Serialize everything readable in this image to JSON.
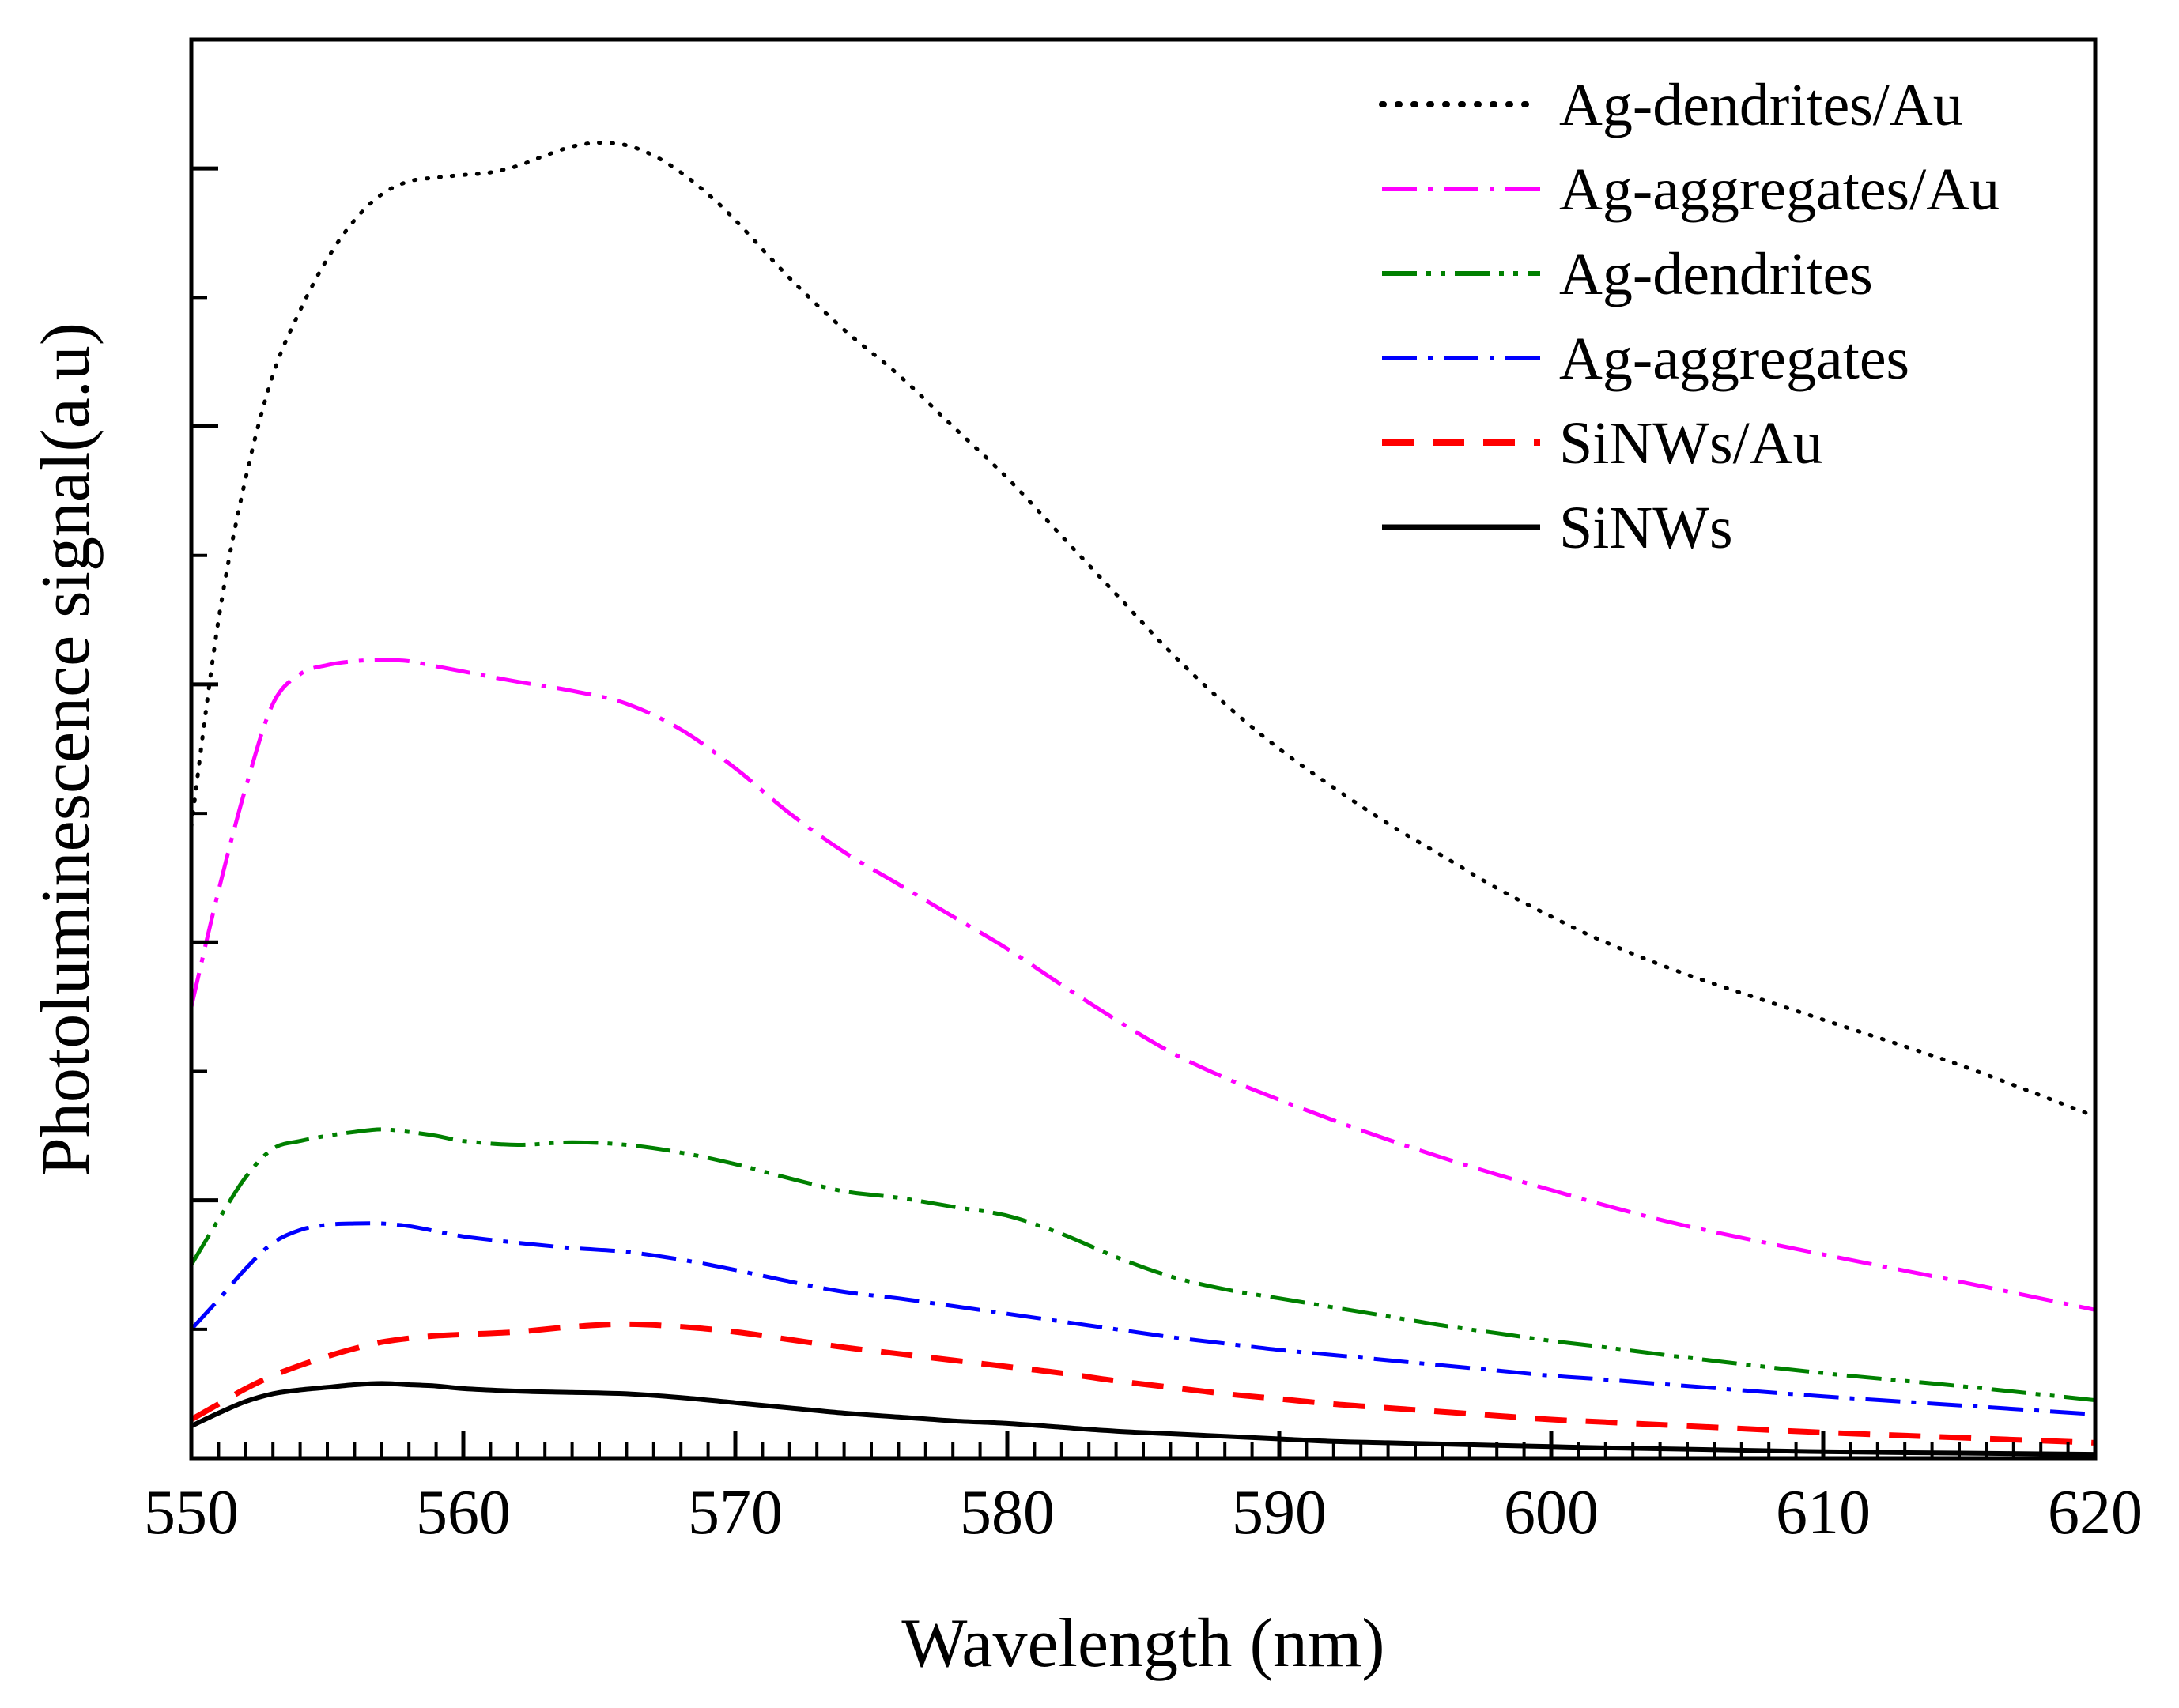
{
  "chart_data": {
    "type": "line",
    "title": "",
    "xlabel": "Wavelength (nm)",
    "ylabel": "Photoluminescence signal(a.u)",
    "xlim": [
      550,
      620
    ],
    "ylim": [
      0,
      11
    ],
    "x_ticks": [
      550,
      560,
      570,
      580,
      590,
      600,
      610,
      620
    ],
    "x_tick_labels": [
      "550",
      "560",
      "570",
      "580",
      "590",
      "600",
      "610",
      "620"
    ],
    "y_tick_labels_shown": false,
    "grid": false,
    "legend_position": "top-right",
    "series": [
      {
        "name": "Ag-dendrites/Au",
        "color": "#000000",
        "style": "dotted",
        "points": [
          [
            550,
            4.9
          ],
          [
            551,
            6.5
          ],
          [
            552,
            7.6
          ],
          [
            553,
            8.4
          ],
          [
            554,
            8.9
          ],
          [
            555,
            9.3
          ],
          [
            556,
            9.6
          ],
          [
            557,
            9.8
          ],
          [
            558,
            9.9
          ],
          [
            559,
            9.93
          ],
          [
            560,
            9.95
          ],
          [
            561,
            9.97
          ],
          [
            562,
            10.02
          ],
          [
            563,
            10.1
          ],
          [
            564,
            10.17
          ],
          [
            565,
            10.2
          ],
          [
            566,
            10.18
          ],
          [
            567,
            10.1
          ],
          [
            568,
            9.97
          ],
          [
            569,
            9.8
          ],
          [
            570,
            9.6
          ],
          [
            572,
            9.15
          ],
          [
            574,
            8.75
          ],
          [
            576,
            8.4
          ],
          [
            578,
            8.0
          ],
          [
            580,
            7.6
          ],
          [
            582,
            7.15
          ],
          [
            584,
            6.7
          ],
          [
            586,
            6.25
          ],
          [
            588,
            5.85
          ],
          [
            590,
            5.5
          ],
          [
            592,
            5.2
          ],
          [
            594,
            4.92
          ],
          [
            596,
            4.67
          ],
          [
            598,
            4.42
          ],
          [
            600,
            4.2
          ],
          [
            602,
            4.0
          ],
          [
            605,
            3.75
          ],
          [
            610,
            3.4
          ],
          [
            615,
            3.05
          ],
          [
            620,
            2.65
          ]
        ]
      },
      {
        "name": "Ag-aggregates/Au",
        "color": "#ff00ff",
        "style": "dash-dot",
        "points": [
          [
            550,
            3.5
          ],
          [
            551,
            4.4
          ],
          [
            552,
            5.2
          ],
          [
            553,
            5.85
          ],
          [
            554,
            6.08
          ],
          [
            555,
            6.15
          ],
          [
            556,
            6.18
          ],
          [
            557,
            6.19
          ],
          [
            558,
            6.18
          ],
          [
            559,
            6.14
          ],
          [
            560,
            6.1
          ],
          [
            562,
            6.02
          ],
          [
            564,
            5.95
          ],
          [
            566,
            5.85
          ],
          [
            568,
            5.65
          ],
          [
            570,
            5.35
          ],
          [
            572,
            5.0
          ],
          [
            574,
            4.7
          ],
          [
            576,
            4.45
          ],
          [
            578,
            4.2
          ],
          [
            580,
            3.95
          ],
          [
            582,
            3.67
          ],
          [
            584,
            3.4
          ],
          [
            586,
            3.15
          ],
          [
            588,
            2.95
          ],
          [
            590,
            2.78
          ],
          [
            592,
            2.62
          ],
          [
            594,
            2.47
          ],
          [
            596,
            2.33
          ],
          [
            598,
            2.2
          ],
          [
            600,
            2.08
          ],
          [
            602,
            1.96
          ],
          [
            605,
            1.8
          ],
          [
            610,
            1.58
          ],
          [
            615,
            1.37
          ],
          [
            620,
            1.15
          ]
        ]
      },
      {
        "name": "Ag-dendrites",
        "color": "#008000",
        "style": "dash-dot-dot",
        "points": [
          [
            550,
            1.5
          ],
          [
            551,
            1.85
          ],
          [
            552,
            2.18
          ],
          [
            553,
            2.4
          ],
          [
            554,
            2.46
          ],
          [
            555,
            2.5
          ],
          [
            556,
            2.53
          ],
          [
            557,
            2.55
          ],
          [
            558,
            2.53
          ],
          [
            559,
            2.5
          ],
          [
            560,
            2.46
          ],
          [
            562,
            2.43
          ],
          [
            564,
            2.45
          ],
          [
            566,
            2.43
          ],
          [
            568,
            2.37
          ],
          [
            570,
            2.28
          ],
          [
            572,
            2.17
          ],
          [
            574,
            2.07
          ],
          [
            576,
            2.02
          ],
          [
            578,
            1.95
          ],
          [
            580,
            1.88
          ],
          [
            582,
            1.74
          ],
          [
            584,
            1.56
          ],
          [
            586,
            1.41
          ],
          [
            588,
            1.31
          ],
          [
            590,
            1.24
          ],
          [
            592,
            1.17
          ],
          [
            594,
            1.1
          ],
          [
            596,
            1.03
          ],
          [
            598,
            0.97
          ],
          [
            600,
            0.91
          ],
          [
            602,
            0.86
          ],
          [
            605,
            0.78
          ],
          [
            610,
            0.66
          ],
          [
            615,
            0.56
          ],
          [
            620,
            0.45
          ]
        ]
      },
      {
        "name": "Ag-aggregates",
        "color": "#0000ff",
        "style": "dash-dot",
        "points": [
          [
            550,
            1.0
          ],
          [
            551,
            1.23
          ],
          [
            552,
            1.47
          ],
          [
            553,
            1.67
          ],
          [
            554,
            1.77
          ],
          [
            555,
            1.81
          ],
          [
            556,
            1.82
          ],
          [
            557,
            1.82
          ],
          [
            558,
            1.8
          ],
          [
            559,
            1.76
          ],
          [
            560,
            1.72
          ],
          [
            562,
            1.67
          ],
          [
            564,
            1.63
          ],
          [
            566,
            1.6
          ],
          [
            568,
            1.54
          ],
          [
            570,
            1.46
          ],
          [
            572,
            1.37
          ],
          [
            574,
            1.29
          ],
          [
            576,
            1.24
          ],
          [
            578,
            1.18
          ],
          [
            580,
            1.12
          ],
          [
            582,
            1.06
          ],
          [
            584,
            1.0
          ],
          [
            586,
            0.94
          ],
          [
            588,
            0.89
          ],
          [
            590,
            0.84
          ],
          [
            592,
            0.8
          ],
          [
            594,
            0.76
          ],
          [
            596,
            0.72
          ],
          [
            598,
            0.68
          ],
          [
            600,
            0.64
          ],
          [
            602,
            0.61
          ],
          [
            605,
            0.56
          ],
          [
            610,
            0.48
          ],
          [
            615,
            0.41
          ],
          [
            620,
            0.34
          ]
        ]
      },
      {
        "name": "SiNWs/Au",
        "color": "#ff0000",
        "style": "dashed",
        "points": [
          [
            550,
            0.3
          ],
          [
            551,
            0.42
          ],
          [
            552,
            0.54
          ],
          [
            553,
            0.64
          ],
          [
            554,
            0.72
          ],
          [
            555,
            0.79
          ],
          [
            556,
            0.85
          ],
          [
            557,
            0.9
          ],
          [
            558,
            0.93
          ],
          [
            559,
            0.95
          ],
          [
            560,
            0.96
          ],
          [
            562,
            0.98
          ],
          [
            564,
            1.02
          ],
          [
            566,
            1.04
          ],
          [
            568,
            1.02
          ],
          [
            570,
            0.98
          ],
          [
            572,
            0.92
          ],
          [
            574,
            0.86
          ],
          [
            576,
            0.81
          ],
          [
            578,
            0.76
          ],
          [
            580,
            0.71
          ],
          [
            582,
            0.66
          ],
          [
            584,
            0.6
          ],
          [
            586,
            0.55
          ],
          [
            588,
            0.5
          ],
          [
            590,
            0.46
          ],
          [
            592,
            0.42
          ],
          [
            594,
            0.39
          ],
          [
            596,
            0.36
          ],
          [
            598,
            0.33
          ],
          [
            600,
            0.3
          ],
          [
            602,
            0.28
          ],
          [
            605,
            0.25
          ],
          [
            610,
            0.2
          ],
          [
            615,
            0.16
          ],
          [
            620,
            0.12
          ]
        ]
      },
      {
        "name": "SiNWs",
        "color": "#000000",
        "style": "solid",
        "points": [
          [
            550,
            0.25
          ],
          [
            551,
            0.35
          ],
          [
            552,
            0.44
          ],
          [
            553,
            0.5
          ],
          [
            554,
            0.53
          ],
          [
            555,
            0.55
          ],
          [
            556,
            0.57
          ],
          [
            557,
            0.58
          ],
          [
            558,
            0.57
          ],
          [
            559,
            0.56
          ],
          [
            560,
            0.54
          ],
          [
            562,
            0.52
          ],
          [
            564,
            0.51
          ],
          [
            566,
            0.5
          ],
          [
            568,
            0.47
          ],
          [
            570,
            0.43
          ],
          [
            572,
            0.39
          ],
          [
            574,
            0.35
          ],
          [
            576,
            0.32
          ],
          [
            578,
            0.29
          ],
          [
            580,
            0.27
          ],
          [
            582,
            0.24
          ],
          [
            584,
            0.21
          ],
          [
            586,
            0.19
          ],
          [
            588,
            0.17
          ],
          [
            590,
            0.15
          ],
          [
            592,
            0.13
          ],
          [
            594,
            0.12
          ],
          [
            596,
            0.11
          ],
          [
            598,
            0.1
          ],
          [
            600,
            0.09
          ],
          [
            602,
            0.08
          ],
          [
            605,
            0.07
          ],
          [
            610,
            0.05
          ],
          [
            615,
            0.04
          ],
          [
            620,
            0.03
          ]
        ]
      }
    ]
  }
}
